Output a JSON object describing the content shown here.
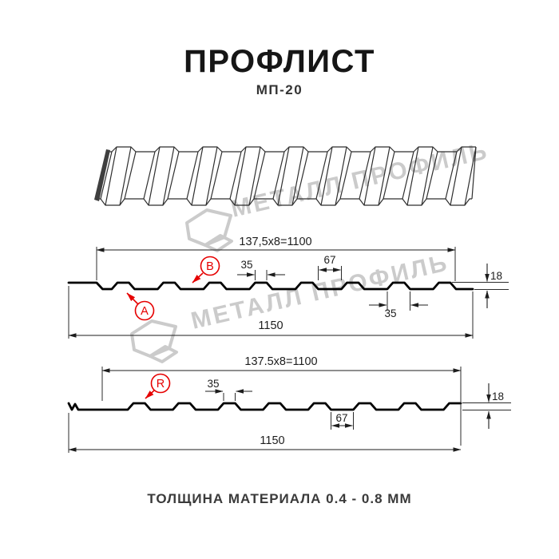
{
  "header": {
    "title": "ПРОФЛИСТ",
    "subtitle": "МП-20"
  },
  "watermark": {
    "brand": "МЕТАЛЛ ПРОФИЛЬ"
  },
  "colors": {
    "accent": "#e60000",
    "ink": "#161616",
    "line": "#1d1d1d",
    "watermark": "#cbcbcb"
  },
  "diagram_front": {
    "pitch_formula": "137,5x8=1100",
    "rib_top_width": "35",
    "valley_width": "67",
    "profile_height": "18",
    "rib_bottom_width": "35",
    "overall_width": "1150",
    "callout_a": "A",
    "callout_b": "B"
  },
  "diagram_reverse": {
    "pitch_formula": "137.5x8=1100",
    "rib_top_width": "35",
    "valley_width": "67",
    "profile_height": "18",
    "overall_width": "1150",
    "callout_r": "R"
  },
  "footer": {
    "text": "ТОЛЩИНА МАТЕРИАЛА 0.4 - 0.8 ММ"
  }
}
